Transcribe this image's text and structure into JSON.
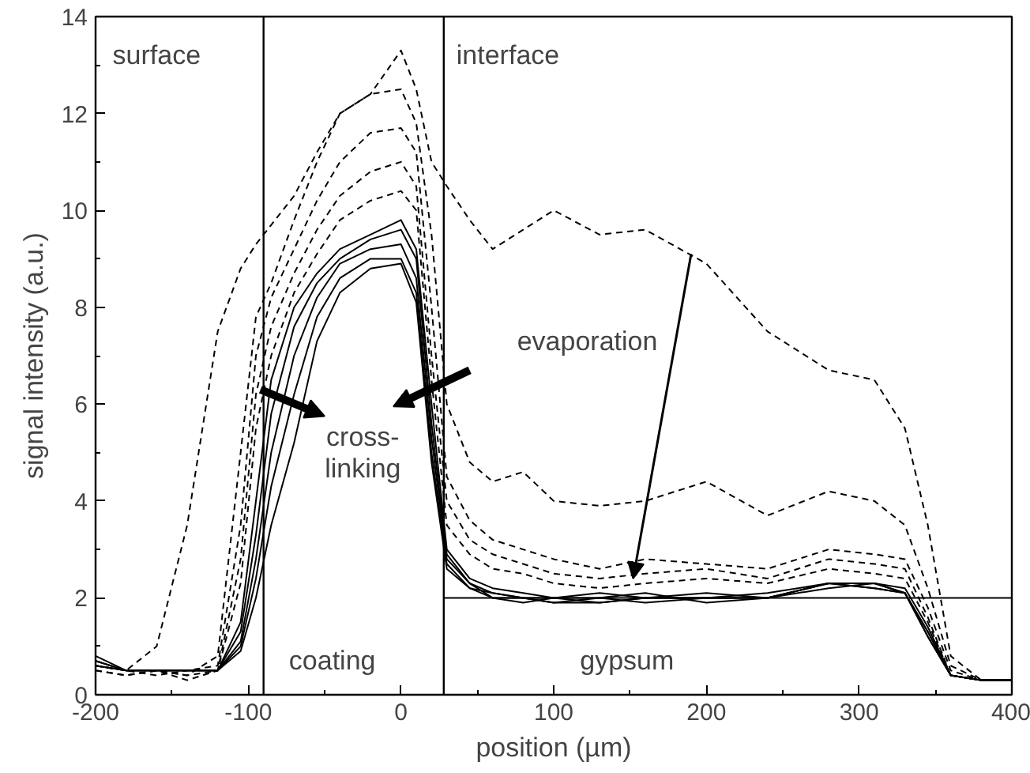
{
  "chart_data": {
    "type": "line",
    "xlabel": "position (µm)",
    "ylabel": "signal intensity (a.u.)",
    "x": [
      -200,
      -180,
      -160,
      -140,
      -120,
      -105,
      -95,
      -85,
      -70,
      -55,
      -40,
      -20,
      0,
      10,
      20,
      30,
      45,
      60,
      80,
      100,
      130,
      160,
      200,
      240,
      280,
      310,
      330,
      345,
      360,
      380,
      400
    ],
    "xlim": [
      -200,
      400
    ],
    "xticks": [
      -200,
      -100,
      0,
      100,
      200,
      300,
      400
    ],
    "ylim": [
      0,
      14
    ],
    "yticks": [
      0,
      2,
      4,
      6,
      8,
      10,
      12,
      14
    ],
    "marker": "none",
    "series": [
      {
        "color": "#000000",
        "line_style": "dashed",
        "values": [
          0.6,
          0.5,
          1.0,
          3.5,
          7.5,
          8.8,
          9.3,
          9.7,
          10.3,
          11.2,
          12.0,
          12.4,
          13.3,
          12.5,
          11.0,
          10.5,
          9.8,
          9.2,
          9.6,
          10.0,
          9.5,
          9.6,
          8.9,
          7.5,
          6.7,
          6.5,
          5.5,
          3.5,
          0.8,
          0.3,
          0.3
        ]
      },
      {
        "color": "#000000",
        "line_style": "dashed",
        "values": [
          0.7,
          0.5,
          0.5,
          0.4,
          0.8,
          5.0,
          7.8,
          8.5,
          9.8,
          11.0,
          12.0,
          12.4,
          12.5,
          11.8,
          9.5,
          6.0,
          4.8,
          4.4,
          4.6,
          4.0,
          3.9,
          4.0,
          4.4,
          3.7,
          4.2,
          4.0,
          3.5,
          2.2,
          0.6,
          0.3,
          0.3
        ]
      },
      {
        "color": "#000000",
        "line_style": "dashed",
        "values": [
          0.6,
          0.5,
          0.4,
          0.5,
          0.6,
          3.5,
          7.0,
          8.2,
          9.2,
          10.2,
          11.0,
          11.6,
          11.7,
          11.2,
          8.0,
          4.5,
          3.6,
          3.2,
          3.0,
          2.8,
          2.6,
          2.8,
          2.7,
          2.6,
          3.0,
          2.9,
          2.8,
          1.8,
          0.5,
          0.3,
          0.3
        ]
      },
      {
        "color": "#000000",
        "line_style": "dashed",
        "values": [
          0.5,
          0.4,
          0.5,
          0.4,
          0.5,
          2.8,
          6.2,
          7.6,
          8.7,
          9.6,
          10.3,
          10.8,
          11.0,
          10.5,
          7.0,
          4.0,
          3.2,
          2.9,
          2.7,
          2.5,
          2.4,
          2.5,
          2.6,
          2.4,
          2.8,
          2.7,
          2.6,
          1.6,
          0.4,
          0.3,
          0.3
        ]
      },
      {
        "color": "#000000",
        "line_style": "dashed",
        "values": [
          0.5,
          0.4,
          0.5,
          0.3,
          0.5,
          2.3,
          5.5,
          7.0,
          8.3,
          9.1,
          9.8,
          10.2,
          10.4,
          10.0,
          6.5,
          3.5,
          2.9,
          2.6,
          2.5,
          2.3,
          2.2,
          2.3,
          2.4,
          2.3,
          2.6,
          2.5,
          2.4,
          1.5,
          0.4,
          0.3,
          0.3
        ]
      },
      {
        "color": "#000000",
        "line_style": "solid",
        "values": [
          0.8,
          0.5,
          0.5,
          0.5,
          0.5,
          1.5,
          4.0,
          6.5,
          8.0,
          8.7,
          9.2,
          9.5,
          9.8,
          9.2,
          6.0,
          3.0,
          2.4,
          2.2,
          2.1,
          2.0,
          2.1,
          2.0,
          2.0,
          2.0,
          2.3,
          2.3,
          2.2,
          1.4,
          0.4,
          0.3,
          0.3
        ]
      },
      {
        "color": "#000000",
        "line_style": "solid",
        "values": [
          0.7,
          0.5,
          0.5,
          0.5,
          0.5,
          1.3,
          3.3,
          5.8,
          7.6,
          8.5,
          9.0,
          9.4,
          9.6,
          9.0,
          5.6,
          2.9,
          2.3,
          2.1,
          2.0,
          1.9,
          2.0,
          2.1,
          1.9,
          2.0,
          2.2,
          2.3,
          2.1,
          1.3,
          0.4,
          0.3,
          0.3
        ]
      },
      {
        "color": "#000000",
        "line_style": "solid",
        "values": [
          0.6,
          0.5,
          0.5,
          0.5,
          0.5,
          1.1,
          2.8,
          5.0,
          7.0,
          8.2,
          8.9,
          9.2,
          9.3,
          8.6,
          5.3,
          2.8,
          2.3,
          2.0,
          1.9,
          2.0,
          1.9,
          2.0,
          2.0,
          2.1,
          2.3,
          2.2,
          2.1,
          1.3,
          0.4,
          0.3,
          0.3
        ]
      },
      {
        "color": "#000000",
        "line_style": "solid",
        "values": [
          0.6,
          0.5,
          0.5,
          0.5,
          0.5,
          1.0,
          2.4,
          4.3,
          6.2,
          7.8,
          8.6,
          9.0,
          9.0,
          8.3,
          5.0,
          2.7,
          2.2,
          2.0,
          2.0,
          1.9,
          1.9,
          2.0,
          2.1,
          2.0,
          2.3,
          2.3,
          2.1,
          1.2,
          0.4,
          0.3,
          0.3
        ]
      },
      {
        "color": "#000000",
        "line_style": "solid",
        "values": [
          0.7,
          0.5,
          0.5,
          0.5,
          0.5,
          0.9,
          2.0,
          3.5,
          5.2,
          7.3,
          8.3,
          8.8,
          8.9,
          8.1,
          4.8,
          2.6,
          2.2,
          2.1,
          2.0,
          2.0,
          2.0,
          1.9,
          2.0,
          2.0,
          2.3,
          2.2,
          2.1,
          1.2,
          0.4,
          0.3,
          0.3
        ]
      },
      {
        "color": "#000000",
        "line_style": "solid",
        "x": [
          28,
          400
        ],
        "values": [
          2,
          2
        ]
      }
    ],
    "ref_lines": [
      {
        "axis": "x",
        "value": -90,
        "color": "#000000"
      },
      {
        "axis": "x",
        "value": 28,
        "color": "#000000"
      }
    ],
    "annotations": [
      "surface",
      "interface",
      "evaporation",
      "cross-\nlinking",
      "coating",
      "gypsum"
    ]
  }
}
